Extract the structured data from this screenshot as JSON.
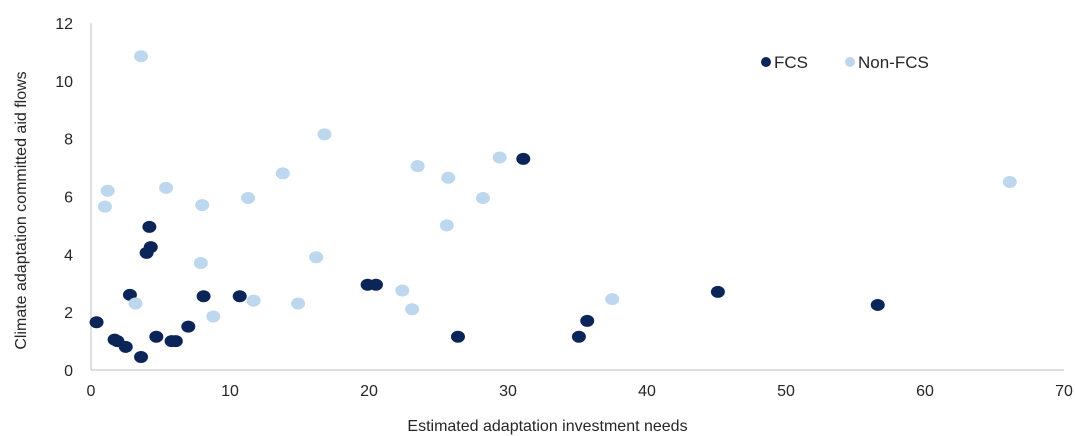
{
  "clipped_title": "",
  "chart_data": {
    "type": "scatter",
    "xlabel": "Estimated adaptation investment needs",
    "ylabel": "Climate adaptation committed aid flows",
    "xlim": [
      0,
      70
    ],
    "ylim": [
      0,
      12
    ],
    "x_ticks": [
      0,
      10,
      20,
      30,
      40,
      50,
      60,
      70
    ],
    "y_ticks": [
      0,
      2,
      4,
      6,
      8,
      10,
      12
    ],
    "grid": false,
    "legend_position": "top-right",
    "series": [
      {
        "name": "FCS",
        "color": "#0b2559",
        "points": [
          [
            0.4,
            1.65
          ],
          [
            1.7,
            1.05
          ],
          [
            1.9,
            1.0
          ],
          [
            2.5,
            0.8
          ],
          [
            2.8,
            2.6
          ],
          [
            3.6,
            0.45
          ],
          [
            4.0,
            4.05
          ],
          [
            4.2,
            4.95
          ],
          [
            4.3,
            4.25
          ],
          [
            4.7,
            1.15
          ],
          [
            5.8,
            1.0
          ],
          [
            6.1,
            1.0
          ],
          [
            7.0,
            1.5
          ],
          [
            8.1,
            2.55
          ],
          [
            10.7,
            2.55
          ],
          [
            19.9,
            2.95
          ],
          [
            20.5,
            2.95
          ],
          [
            26.4,
            1.15
          ],
          [
            31.1,
            7.3
          ],
          [
            35.1,
            1.15
          ],
          [
            35.7,
            1.7
          ],
          [
            45.1,
            2.7
          ],
          [
            56.6,
            2.25
          ]
        ]
      },
      {
        "name": "Non-FCS",
        "color": "#bcd7ee",
        "points": [
          [
            3.6,
            10.85
          ],
          [
            1.0,
            5.65
          ],
          [
            1.2,
            6.2
          ],
          [
            3.2,
            2.3
          ],
          [
            5.4,
            6.3
          ],
          [
            7.9,
            3.7
          ],
          [
            8.0,
            5.7
          ],
          [
            8.8,
            1.85
          ],
          [
            11.3,
            5.95
          ],
          [
            11.7,
            2.4
          ],
          [
            13.8,
            6.8
          ],
          [
            14.9,
            2.3
          ],
          [
            16.2,
            3.9
          ],
          [
            16.8,
            8.15
          ],
          [
            22.4,
            2.75
          ],
          [
            23.1,
            2.1
          ],
          [
            23.5,
            7.05
          ],
          [
            25.6,
            5.0
          ],
          [
            25.7,
            6.65
          ],
          [
            28.2,
            5.95
          ],
          [
            29.4,
            7.35
          ],
          [
            37.5,
            2.45
          ],
          [
            66.1,
            6.5
          ]
        ]
      }
    ]
  }
}
